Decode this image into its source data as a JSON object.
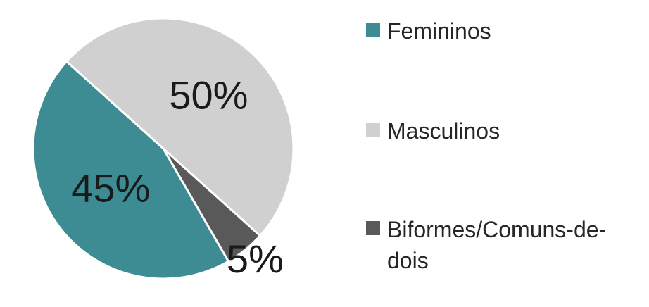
{
  "chart_data": {
    "type": "pie",
    "categories": [
      "Femininos",
      "Masculinos",
      "Biformes/Comuns-de-dois"
    ],
    "values": [
      45,
      50,
      5
    ],
    "value_labels": [
      "45%",
      "50%",
      "5%"
    ],
    "colors": [
      "#3d8b93",
      "#d0d0d0",
      "#595959"
    ],
    "legend": "right"
  }
}
